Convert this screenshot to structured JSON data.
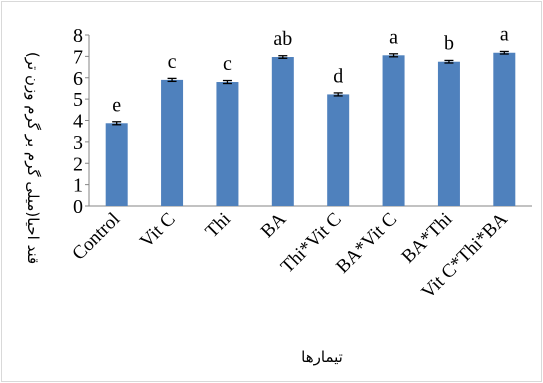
{
  "chart_data": {
    "type": "bar",
    "categories": [
      "Control",
      "Vit C",
      "Thi",
      "BA",
      "Thi*Vit C",
      "BA*Vit C",
      "BA*Thi",
      "Vit C*Thi*BA"
    ],
    "values": [
      3.87,
      5.9,
      5.8,
      6.97,
      5.22,
      7.05,
      6.75,
      7.17
    ],
    "errors": [
      0.07,
      0.07,
      0.07,
      0.06,
      0.07,
      0.07,
      0.06,
      0.06
    ],
    "significance_letters": [
      "e",
      "c",
      "c",
      "ab",
      "d",
      "a",
      "b",
      "a"
    ],
    "title": "",
    "xlabel": "تیمارها",
    "ylabel": "قند احیا(میلی گرم بر گرم وزن تر)",
    "ylim": [
      0,
      8
    ],
    "yticks": [
      "0",
      "1",
      "2",
      "3",
      "4",
      "5",
      "6",
      "7",
      "8"
    ],
    "grid": false,
    "legend": "none",
    "bar_color": "#4f81bd",
    "error_bar_color": "#000000"
  }
}
